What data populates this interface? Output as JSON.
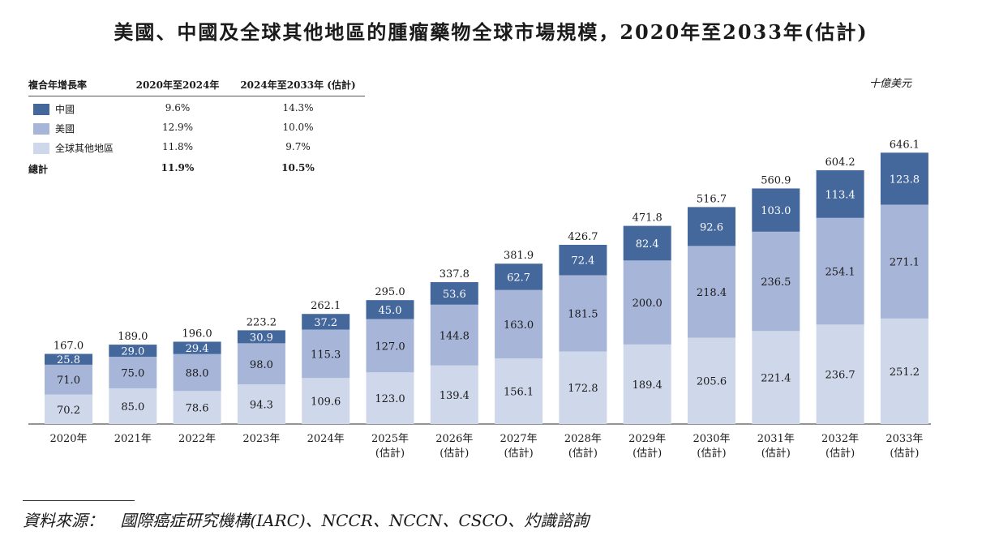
{
  "title": "美國、中國及全球其他地區的腫瘤藥物全球市場規模，2020年至2033年(估計)",
  "unit_label": "十億美元",
  "legend": {
    "header": [
      "複合年增長率",
      "2020年至2024年",
      "2024年至2033年 (估計)"
    ],
    "rows": [
      {
        "name": "中國",
        "cagr_2020_2024": "9.6%",
        "cagr_2024_2033": "14.3%",
        "color": "#44679c"
      },
      {
        "name": "美國",
        "cagr_2020_2024": "12.9%",
        "cagr_2024_2033": "10.0%",
        "color": "#a7b5d8"
      },
      {
        "name": "全球其他地區",
        "cagr_2020_2024": "11.8%",
        "cagr_2024_2033": "9.7%",
        "color": "#cfd8ea"
      }
    ],
    "total": {
      "name": "總計",
      "cagr_2020_2024": "11.9%",
      "cagr_2024_2033": "10.5%"
    }
  },
  "chart_data": {
    "type": "bar",
    "stacked": true,
    "categories": [
      "2020年",
      "2021年",
      "2022年",
      "2023年",
      "2024年",
      "2025年",
      "2026年",
      "2027年",
      "2028年",
      "2029年",
      "2030年",
      "2031年",
      "2032年",
      "2033年"
    ],
    "category_notes": [
      "",
      "",
      "",
      "",
      "",
      "(估計)",
      "(估計)",
      "(估計)",
      "(估計)",
      "(估計)",
      "(估計)",
      "(估計)",
      "(估計)",
      "(估計)"
    ],
    "series": [
      {
        "name": "全球其他地區",
        "color": "#cfd8ea",
        "label_color": "#1a1a1a",
        "values": [
          70.2,
          85.0,
          78.6,
          94.3,
          109.6,
          123.0,
          139.4,
          156.1,
          172.8,
          189.4,
          205.6,
          221.4,
          236.7,
          251.2
        ]
      },
      {
        "name": "美國",
        "color": "#a7b5d8",
        "label_color": "#1a1a1a",
        "values": [
          71.0,
          75.0,
          88.0,
          98.0,
          115.3,
          127.0,
          144.8,
          163.0,
          181.5,
          200.0,
          218.4,
          236.5,
          254.1,
          271.1
        ]
      },
      {
        "name": "中國",
        "color": "#44679c",
        "label_color": "#ffffff",
        "values": [
          25.8,
          29.0,
          29.4,
          30.9,
          37.2,
          45.0,
          53.6,
          62.7,
          72.4,
          82.4,
          92.6,
          103.0,
          113.4,
          123.8
        ]
      }
    ],
    "totals": [
      167.0,
      189.0,
      196.0,
      223.2,
      262.1,
      295.0,
      337.8,
      381.9,
      426.7,
      471.8,
      516.7,
      560.9,
      604.2,
      646.1
    ],
    "ylim": [
      0,
      700
    ]
  },
  "source": {
    "label": "資料來源：",
    "text": "國際癌症研究機構(IARC)、NCCR、NCCN、CSCO、灼識諮詢"
  }
}
